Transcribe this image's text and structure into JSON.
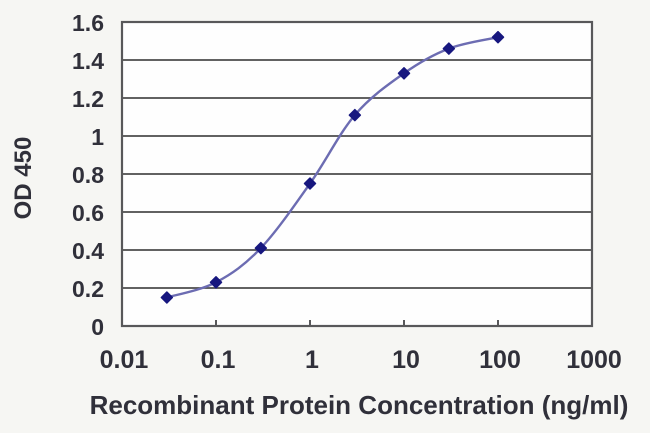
{
  "figure": {
    "background_color": "#f6f6f3",
    "plot_background_color": "#fefefe",
    "grid_color": "#4c4c4c",
    "border_color": "#58585a",
    "text_color": "#30303a"
  },
  "chart_data": {
    "type": "line",
    "title": "",
    "xlabel": "Recombinant Protein Concentration (ng/ml)",
    "ylabel": "OD 450",
    "x_scale": "log",
    "xlim": [
      0.01,
      1000
    ],
    "ylim": [
      0,
      1.6
    ],
    "x_tick_values": [
      0.01,
      0.1,
      1,
      10,
      100,
      1000
    ],
    "x_tick_labels": [
      "0.01",
      "0.1",
      "1",
      "10",
      "100",
      "1000"
    ],
    "y_tick_values": [
      0,
      0.2,
      0.4,
      0.6,
      0.8,
      1,
      1.2,
      1.4,
      1.6
    ],
    "y_tick_labels": [
      "0",
      "0.2",
      "0.4",
      "0.6",
      "0.8",
      "1",
      "1.2",
      "1.4",
      "1.6"
    ],
    "grid": "horizontal",
    "legend": "none",
    "series": [
      {
        "x": [
          0.03,
          0.1,
          0.3,
          1,
          3,
          10,
          30,
          100
        ],
        "y": [
          0.15,
          0.23,
          0.41,
          0.75,
          1.11,
          1.33,
          1.46,
          1.52
        ],
        "line_color": "#6c6cb2",
        "line_width": 2.4,
        "marker": "diamond",
        "marker_color": "#17177f",
        "marker_size": 5.5,
        "smooth": true
      }
    ]
  }
}
